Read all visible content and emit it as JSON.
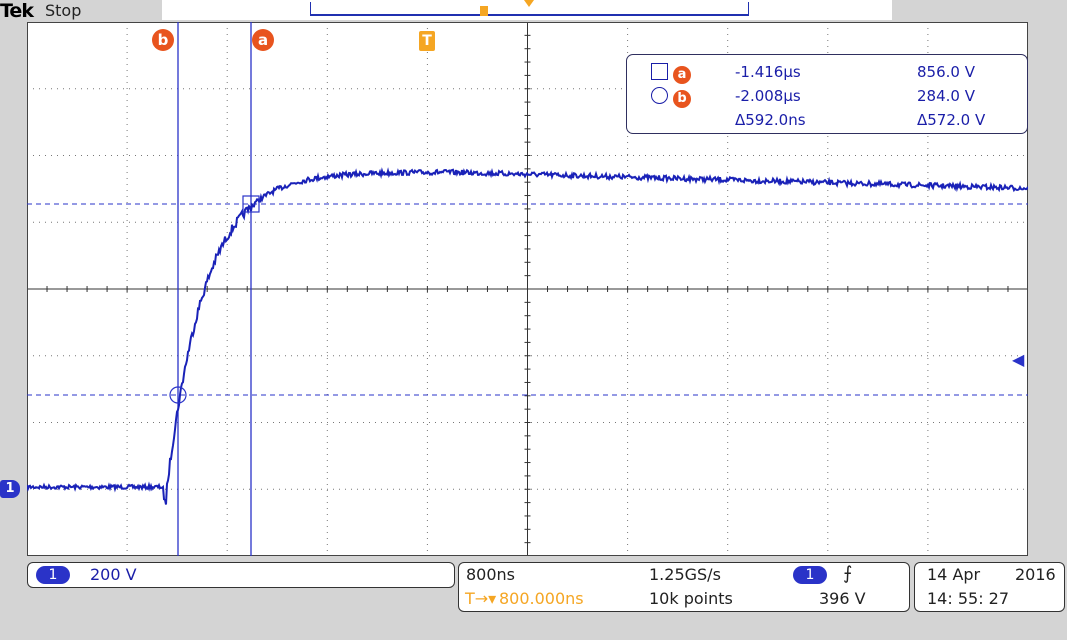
{
  "header": {
    "brand": "Tek",
    "acq_state": "Stop"
  },
  "colors": {
    "trace": "#1a22b8",
    "cursor": "#e8541e",
    "trigger": "#f5a623",
    "grid": "#555555"
  },
  "cursor_labels": {
    "a": "a",
    "b": "b",
    "trigger": "T"
  },
  "channel_marker": "1",
  "readout": {
    "row_a": {
      "label": "a",
      "time": "-1.416μs",
      "volts": "856.0 V"
    },
    "row_b": {
      "label": "b",
      "time": "-2.008μs",
      "volts": "284.0 V"
    },
    "delta": {
      "time": "Δ592.0ns",
      "volts": "Δ572.0 V"
    }
  },
  "status": {
    "channel": {
      "number": "1",
      "scale": "200 V"
    },
    "timebase": {
      "per_div": "800ns",
      "sample_rate": "1.25GS/s",
      "record": "10k points",
      "position": "800.000ns",
      "pos_prefix": "T→▾"
    },
    "trigger": {
      "channel": "1",
      "slope_icon": "rising-edge-icon",
      "slope": "⨍",
      "level": "396 V"
    },
    "datetime": {
      "date": "14 Apr",
      "year": "2016",
      "time": "14: 55: 27"
    }
  }
}
